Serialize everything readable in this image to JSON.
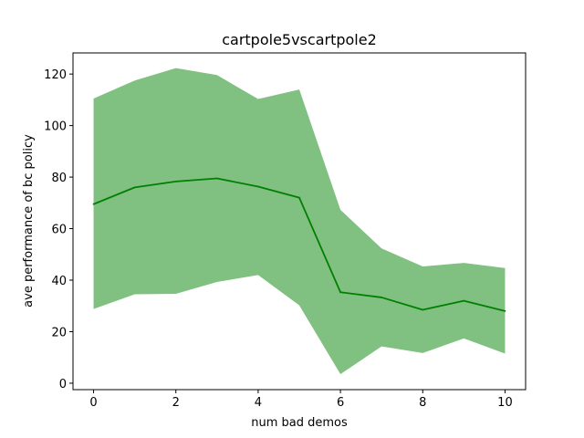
{
  "chart_data": {
    "type": "line",
    "title": "cartpole5vscartpole2",
    "xlabel": "num bad demos",
    "ylabel": "ave performance of bc policy",
    "x": [
      0,
      1,
      2,
      3,
      4,
      5,
      6,
      7,
      8,
      9,
      10
    ],
    "series": [
      {
        "values": [
          69.5,
          76,
          78.3,
          79.5,
          76.3,
          72,
          35.3,
          33.3,
          28.5,
          32,
          28
        ],
        "lower": [
          28.8,
          34.5,
          34.7,
          39.3,
          42,
          30.2,
          3.5,
          14.3,
          11.7,
          17.4,
          11.5
        ],
        "upper": [
          110.5,
          117.5,
          122.3,
          119.6,
          110.3,
          114,
          67.3,
          52.3,
          45.3,
          46.7,
          44.7
        ],
        "color": "#008000",
        "band_color": "#80c080"
      }
    ],
    "xticks": [
      0,
      2,
      4,
      6,
      8,
      10
    ],
    "yticks": [
      0,
      20,
      40,
      60,
      80,
      100,
      120
    ],
    "xlim": [
      -0.5,
      10.5
    ],
    "ylim": [
      -2.5,
      128.2
    ],
    "grid": false,
    "legend": "none"
  }
}
